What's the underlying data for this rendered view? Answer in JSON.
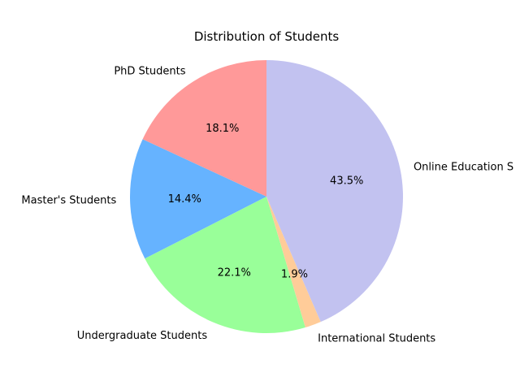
{
  "chart_data": {
    "type": "pie",
    "title": "Distribution of Students",
    "start_angle_deg": 90,
    "direction": "counterclockwise",
    "categories": [
      "PhD Students",
      "Master's Students",
      "Undergraduate Students",
      "International Students",
      "Online Education S"
    ],
    "values": [
      18.1,
      14.4,
      22.1,
      1.9,
      43.5
    ],
    "value_labels": [
      "18.1%",
      "14.4%",
      "22.1%",
      "1.9%",
      "43.5%"
    ],
    "colors": [
      "#ff9999",
      "#66b3ff",
      "#99ff99",
      "#ffcc99",
      "#c2c2f0"
    ],
    "legend": "none"
  }
}
